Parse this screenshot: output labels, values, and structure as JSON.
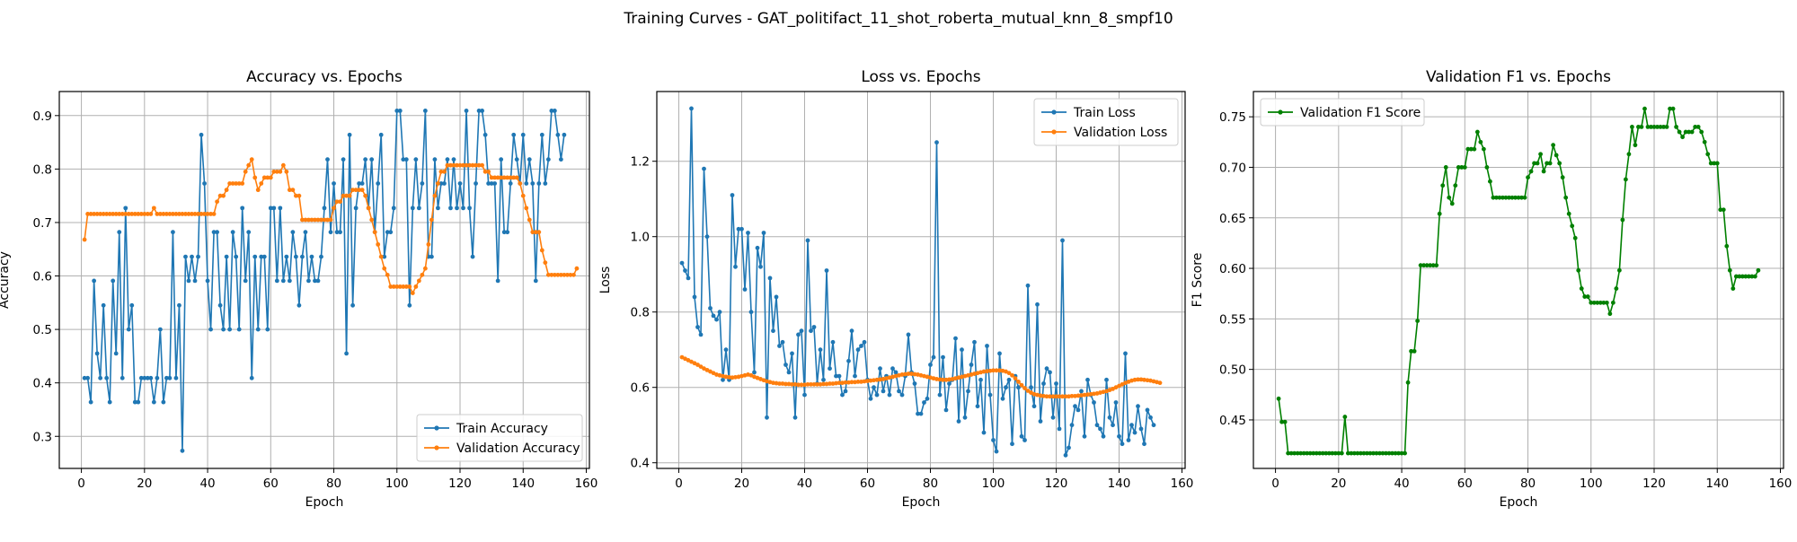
{
  "suptitle": "Training Curves - GAT_politifact_11_shot_roberta_mutual_knn_8_smpf10",
  "colors": {
    "blue": "#1f77b4",
    "orange": "#ff7f0e",
    "green": "#008000",
    "grid": "#b0b0b0"
  },
  "chart_data": [
    {
      "type": "line",
      "title": "Accuracy vs. Epochs",
      "xlabel": "Epoch",
      "ylabel": "Accuracy",
      "xlim": [
        -7,
        161
      ],
      "ylim": [
        0.24,
        0.945
      ],
      "xticks": [
        0,
        20,
        40,
        60,
        80,
        100,
        120,
        140,
        160
      ],
      "yticks": [
        0.3,
        0.4,
        0.5,
        0.6,
        0.7,
        0.8,
        0.9
      ],
      "grid": true,
      "legend": "lower right",
      "series": [
        {
          "name": "Train Accuracy",
          "color": "#1f77b4",
          "x_start": 1,
          "values": [
            0.409,
            0.409,
            0.364,
            0.591,
            0.455,
            0.409,
            0.545,
            0.409,
            0.364,
            0.591,
            0.455,
            0.682,
            0.409,
            0.727,
            0.5,
            0.545,
            0.364,
            0.364,
            0.409,
            0.409,
            0.409,
            0.409,
            0.364,
            0.409,
            0.5,
            0.364,
            0.409,
            0.409,
            0.682,
            0.409,
            0.545,
            0.273,
            0.636,
            0.591,
            0.636,
            0.591,
            0.636,
            0.864,
            0.773,
            0.591,
            0.5,
            0.682,
            0.682,
            0.545,
            0.5,
            0.636,
            0.5,
            0.682,
            0.636,
            0.5,
            0.727,
            0.591,
            0.682,
            0.409,
            0.636,
            0.5,
            0.636,
            0.636,
            0.5,
            0.727,
            0.727,
            0.591,
            0.727,
            0.591,
            0.636,
            0.591,
            0.682,
            0.636,
            0.545,
            0.636,
            0.682,
            0.591,
            0.636,
            0.591,
            0.591,
            0.636,
            0.727,
            0.818,
            0.682,
            0.773,
            0.682,
            0.682,
            0.818,
            0.455,
            0.864,
            0.545,
            0.727,
            0.773,
            0.773,
            0.818,
            0.727,
            0.818,
            0.682,
            0.773,
            0.864,
            0.636,
            0.682,
            0.682,
            0.727,
            0.909,
            0.909,
            0.818,
            0.818,
            0.545,
            0.727,
            0.818,
            0.727,
            0.773,
            0.909,
            0.636,
            0.636,
            0.818,
            0.727,
            0.773,
            0.773,
            0.818,
            0.727,
            0.818,
            0.727,
            0.773,
            0.727,
            0.909,
            0.727,
            0.636,
            0.773,
            0.909,
            0.909,
            0.864,
            0.773,
            0.773,
            0.773,
            0.591,
            0.818,
            0.682,
            0.682,
            0.773,
            0.864,
            0.818,
            0.773,
            0.864,
            0.773,
            0.818,
            0.773,
            0.591,
            0.773,
            0.864,
            0.773,
            0.818,
            0.909,
            0.909,
            0.864,
            0.818,
            0.864
          ]
        },
        {
          "name": "Validation Accuracy",
          "color": "#ff7f0e",
          "x_start": 1,
          "values": [
            0.668,
            0.716,
            0.716,
            0.716,
            0.716,
            0.716,
            0.716,
            0.716,
            0.716,
            0.716,
            0.716,
            0.716,
            0.716,
            0.716,
            0.716,
            0.716,
            0.716,
            0.716,
            0.716,
            0.716,
            0.716,
            0.716,
            0.727,
            0.716,
            0.716,
            0.716,
            0.716,
            0.716,
            0.716,
            0.716,
            0.716,
            0.716,
            0.716,
            0.716,
            0.716,
            0.716,
            0.716,
            0.716,
            0.716,
            0.716,
            0.716,
            0.716,
            0.739,
            0.75,
            0.75,
            0.761,
            0.773,
            0.773,
            0.773,
            0.773,
            0.773,
            0.795,
            0.807,
            0.818,
            0.784,
            0.761,
            0.773,
            0.784,
            0.784,
            0.784,
            0.795,
            0.795,
            0.795,
            0.807,
            0.795,
            0.761,
            0.761,
            0.75,
            0.75,
            0.705,
            0.705,
            0.705,
            0.705,
            0.705,
            0.705,
            0.705,
            0.705,
            0.705,
            0.705,
            0.727,
            0.739,
            0.739,
            0.75,
            0.75,
            0.75,
            0.761,
            0.761,
            0.761,
            0.761,
            0.75,
            0.727,
            0.705,
            0.682,
            0.659,
            0.636,
            0.614,
            0.602,
            0.58,
            0.58,
            0.58,
            0.58,
            0.58,
            0.58,
            0.58,
            0.568,
            0.58,
            0.591,
            0.602,
            0.614,
            0.659,
            0.705,
            0.75,
            0.773,
            0.795,
            0.795,
            0.807,
            0.807,
            0.807,
            0.807,
            0.807,
            0.807,
            0.807,
            0.807,
            0.807,
            0.807,
            0.807,
            0.807,
            0.795,
            0.795,
            0.784,
            0.784,
            0.784,
            0.784,
            0.784,
            0.784,
            0.784,
            0.784,
            0.784,
            0.773,
            0.75,
            0.727,
            0.705,
            0.682,
            0.682,
            0.682,
            0.648,
            0.625,
            0.602,
            0.602,
            0.602,
            0.602,
            0.602,
            0.602,
            0.602,
            0.602,
            0.602,
            0.614
          ]
        }
      ]
    },
    {
      "type": "line",
      "title": "Loss vs. Epochs",
      "xlabel": "Epoch",
      "ylabel": "Loss",
      "xlim": [
        -7,
        161
      ],
      "ylim": [
        0.385,
        1.385
      ],
      "xticks": [
        0,
        20,
        40,
        60,
        80,
        100,
        120,
        140,
        160
      ],
      "yticks": [
        0.4,
        0.6,
        0.8,
        1.0,
        1.2
      ],
      "grid": true,
      "legend": "upper right",
      "series": [
        {
          "name": "Train Loss",
          "color": "#1f77b4",
          "x_start": 1,
          "values": [
            0.93,
            0.91,
            0.89,
            1.34,
            0.84,
            0.76,
            0.74,
            1.18,
            1.0,
            0.81,
            0.79,
            0.78,
            0.8,
            0.62,
            0.7,
            0.62,
            1.11,
            0.92,
            1.02,
            1.02,
            0.86,
            1.01,
            0.8,
            0.64,
            0.97,
            0.92,
            1.01,
            0.52,
            0.89,
            0.75,
            0.84,
            0.71,
            0.72,
            0.66,
            0.64,
            0.69,
            0.52,
            0.74,
            0.75,
            0.58,
            0.99,
            0.75,
            0.76,
            0.61,
            0.7,
            0.62,
            0.91,
            0.65,
            0.72,
            0.63,
            0.63,
            0.58,
            0.59,
            0.67,
            0.75,
            0.63,
            0.7,
            0.71,
            0.72,
            0.62,
            0.57,
            0.6,
            0.58,
            0.65,
            0.59,
            0.63,
            0.58,
            0.65,
            0.64,
            0.59,
            0.58,
            0.63,
            0.74,
            0.64,
            0.61,
            0.53,
            0.53,
            0.56,
            0.57,
            0.66,
            0.68,
            1.25,
            0.58,
            0.68,
            0.54,
            0.61,
            0.62,
            0.73,
            0.51,
            0.7,
            0.52,
            0.59,
            0.66,
            0.72,
            0.55,
            0.62,
            0.48,
            0.71,
            0.58,
            0.46,
            0.43,
            0.69,
            0.57,
            0.6,
            0.62,
            0.45,
            0.63,
            0.6,
            0.47,
            0.46,
            0.87,
            0.6,
            0.55,
            0.82,
            0.51,
            0.61,
            0.65,
            0.64,
            0.52,
            0.61,
            0.49,
            0.99,
            0.42,
            0.44,
            0.5,
            0.55,
            0.54,
            0.59,
            0.47,
            0.62,
            0.58,
            0.56,
            0.5,
            0.49,
            0.47,
            0.62,
            0.52,
            0.5,
            0.56,
            0.47,
            0.45,
            0.69,
            0.46,
            0.5,
            0.48,
            0.55,
            0.49,
            0.45,
            0.54,
            0.52,
            0.5
          ]
        },
        {
          "name": "Validation Loss",
          "color": "#ff7f0e",
          "x_start": 1,
          "values": [
            0.68,
            0.676,
            0.672,
            0.668,
            0.664,
            0.66,
            0.655,
            0.65,
            0.646,
            0.642,
            0.638,
            0.634,
            0.632,
            0.63,
            0.628,
            0.627,
            0.626,
            0.627,
            0.628,
            0.63,
            0.632,
            0.634,
            0.632,
            0.628,
            0.625,
            0.622,
            0.619,
            0.616,
            0.614,
            0.612,
            0.611,
            0.61,
            0.61,
            0.609,
            0.609,
            0.608,
            0.608,
            0.607,
            0.607,
            0.607,
            0.608,
            0.608,
            0.608,
            0.608,
            0.608,
            0.609,
            0.609,
            0.61,
            0.61,
            0.611,
            0.612,
            0.612,
            0.613,
            0.613,
            0.614,
            0.614,
            0.615,
            0.615,
            0.616,
            0.617,
            0.618,
            0.619,
            0.62,
            0.621,
            0.622,
            0.624,
            0.626,
            0.628,
            0.63,
            0.632,
            0.634,
            0.635,
            0.636,
            0.636,
            0.635,
            0.634,
            0.632,
            0.63,
            0.628,
            0.626,
            0.624,
            0.622,
            0.621,
            0.62,
            0.62,
            0.621,
            0.622,
            0.624,
            0.626,
            0.628,
            0.63,
            0.632,
            0.634,
            0.636,
            0.638,
            0.64,
            0.642,
            0.643,
            0.644,
            0.645,
            0.645,
            0.645,
            0.644,
            0.642,
            0.638,
            0.632,
            0.624,
            0.615,
            0.606,
            0.598,
            0.591,
            0.586,
            0.582,
            0.58,
            0.578,
            0.577,
            0.576,
            0.576,
            0.576,
            0.576,
            0.576,
            0.576,
            0.576,
            0.576,
            0.577,
            0.577,
            0.578,
            0.579,
            0.58,
            0.581,
            0.582,
            0.583,
            0.584,
            0.586,
            0.588,
            0.59,
            0.593,
            0.596,
            0.6,
            0.604,
            0.608,
            0.612,
            0.615,
            0.618,
            0.62,
            0.621,
            0.621,
            0.62,
            0.619,
            0.618,
            0.616,
            0.614,
            0.612
          ]
        }
      ]
    },
    {
      "type": "line",
      "title": "Validation F1 vs. Epochs",
      "xlabel": "Epoch",
      "ylabel": "F1 Score",
      "xlim": [
        -7,
        161
      ],
      "ylim": [
        0.402,
        0.775
      ],
      "xticks": [
        0,
        20,
        40,
        60,
        80,
        100,
        120,
        140,
        160
      ],
      "yticks": [
        0.45,
        0.5,
        0.55,
        0.6,
        0.65,
        0.7,
        0.75
      ],
      "grid": true,
      "legend": "upper left",
      "series": [
        {
          "name": "Validation F1 Score",
          "color": "#008000",
          "x_start": 1,
          "values": [
            0.471,
            0.448,
            0.448,
            0.417,
            0.417,
            0.417,
            0.417,
            0.417,
            0.417,
            0.417,
            0.417,
            0.417,
            0.417,
            0.417,
            0.417,
            0.417,
            0.417,
            0.417,
            0.417,
            0.417,
            0.417,
            0.453,
            0.417,
            0.417,
            0.417,
            0.417,
            0.417,
            0.417,
            0.417,
            0.417,
            0.417,
            0.417,
            0.417,
            0.417,
            0.417,
            0.417,
            0.417,
            0.417,
            0.417,
            0.417,
            0.417,
            0.487,
            0.518,
            0.518,
            0.548,
            0.603,
            0.603,
            0.603,
            0.603,
            0.603,
            0.603,
            0.654,
            0.682,
            0.7,
            0.67,
            0.664,
            0.682,
            0.7,
            0.7,
            0.7,
            0.718,
            0.718,
            0.718,
            0.735,
            0.725,
            0.718,
            0.7,
            0.686,
            0.67,
            0.67,
            0.67,
            0.67,
            0.67,
            0.67,
            0.67,
            0.67,
            0.67,
            0.67,
            0.67,
            0.69,
            0.696,
            0.704,
            0.704,
            0.713,
            0.696,
            0.704,
            0.704,
            0.722,
            0.712,
            0.704,
            0.69,
            0.67,
            0.654,
            0.642,
            0.63,
            0.598,
            0.58,
            0.572,
            0.572,
            0.566,
            0.566,
            0.566,
            0.566,
            0.566,
            0.566,
            0.555,
            0.566,
            0.58,
            0.598,
            0.648,
            0.688,
            0.713,
            0.74,
            0.722,
            0.74,
            0.74,
            0.758,
            0.74,
            0.74,
            0.74,
            0.74,
            0.74,
            0.74,
            0.74,
            0.758,
            0.758,
            0.74,
            0.735,
            0.73,
            0.735,
            0.735,
            0.735,
            0.74,
            0.74,
            0.735,
            0.725,
            0.713,
            0.704,
            0.704,
            0.704,
            0.658,
            0.658,
            0.622,
            0.598,
            0.58,
            0.592,
            0.592,
            0.592,
            0.592,
            0.592,
            0.592,
            0.592,
            0.598
          ]
        }
      ]
    }
  ]
}
